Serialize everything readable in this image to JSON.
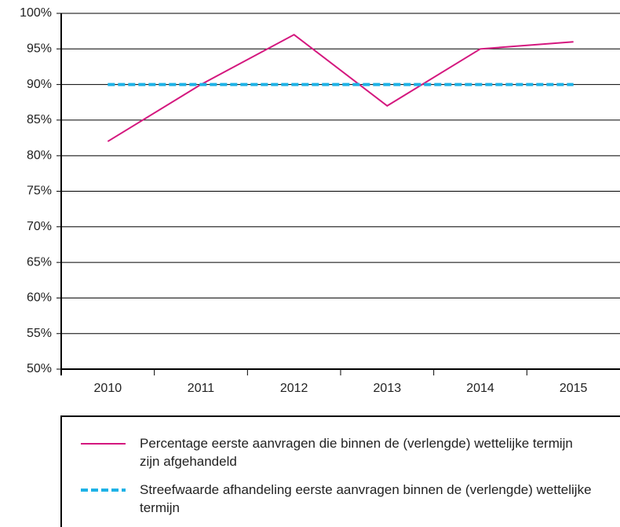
{
  "chart_data": {
    "type": "line",
    "categories": [
      "2010",
      "2011",
      "2012",
      "2013",
      "2014",
      "2015"
    ],
    "series": [
      {
        "name": "Percentage eerste aanvragen die binnen de (verlengde) wettelijke termijn zijn afgehandeld",
        "color": "#d4177e",
        "values": [
          82,
          90,
          97,
          87,
          95,
          96
        ]
      },
      {
        "name": "Streefwaarde afhandeling eerste aanvragen binnen de (verlengde) wettelijke termijn",
        "color": "#1eb2e6",
        "dashed": true,
        "values": [
          90,
          90,
          90,
          90,
          90,
          90
        ]
      }
    ],
    "ylim": [
      50,
      100
    ],
    "yticks": [
      {
        "value": 50,
        "label": "50%"
      },
      {
        "value": 55,
        "label": "55%"
      },
      {
        "value": 60,
        "label": "60%"
      },
      {
        "value": 65,
        "label": "65%"
      },
      {
        "value": 70,
        "label": "70%"
      },
      {
        "value": 75,
        "label": "75%"
      },
      {
        "value": 80,
        "label": "80%"
      },
      {
        "value": 85,
        "label": "85%"
      },
      {
        "value": 90,
        "label": "90%"
      },
      {
        "value": 95,
        "label": "95%"
      },
      {
        "value": 100,
        "label": "100%"
      }
    ],
    "grid": true
  }
}
